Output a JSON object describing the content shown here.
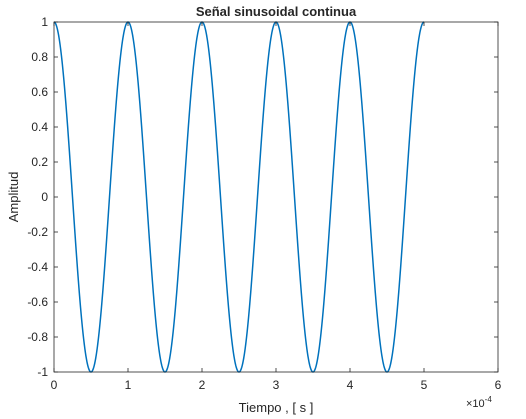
{
  "chart_data": {
    "type": "line",
    "title": "Señal sinusoidal continua",
    "xlabel": "Tiempo , [ s ]",
    "ylabel": "Amplitud",
    "x_exponent_label": "×10",
    "x_exponent_power": "-4",
    "xlim": [
      0,
      0.0006
    ],
    "ylim": [
      -1,
      1
    ],
    "x_tick_values": [
      0,
      0.0001,
      0.0002,
      0.0003,
      0.0004,
      0.0005,
      0.0006
    ],
    "x_tick_labels": [
      "0",
      "1",
      "2",
      "3",
      "4",
      "5",
      "6"
    ],
    "y_tick_values": [
      -1,
      -0.8,
      -0.6,
      -0.4,
      -0.2,
      0,
      0.2,
      0.4,
      0.6,
      0.8,
      1
    ],
    "y_tick_labels": [
      "-1",
      "-0.8",
      "-0.6",
      "-0.4",
      "-0.2",
      "0",
      "0.2",
      "0.4",
      "0.6",
      "0.8",
      "1"
    ],
    "grid": false,
    "series": [
      {
        "function": "cos(2*pi*10000*t)",
        "frequency_hz": 10000,
        "amplitude": 1,
        "x_range": [
          0,
          0.0005
        ],
        "color": "#0072BD"
      }
    ]
  }
}
